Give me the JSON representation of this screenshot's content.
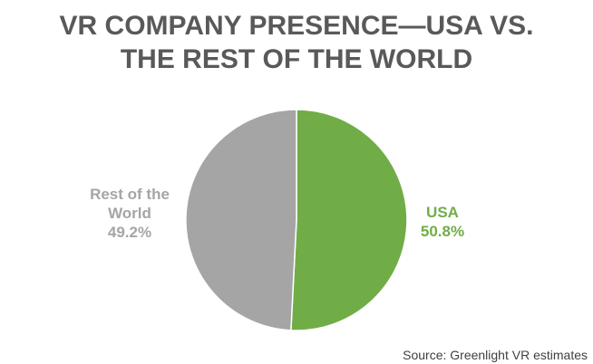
{
  "title_lines": [
    "VR COMPANY PRESENCE—USA VS.",
    "THE REST OF THE WORLD"
  ],
  "source": "Source: Greenlight VR estimates",
  "colors": {
    "title": "#595959",
    "source": "#404040"
  },
  "chart_data": {
    "type": "pie",
    "slices": [
      {
        "name": "USA",
        "label_lines": [
          "USA",
          "50.8%"
        ],
        "value": 50.8,
        "color": "#70ad47"
      },
      {
        "name": "Rest of the World",
        "label_lines": [
          "Rest of the",
          "World",
          "49.2%"
        ],
        "value": 49.2,
        "color": "#a5a5a5"
      }
    ],
    "start": "top",
    "direction": "clockwise",
    "legend": "none"
  }
}
